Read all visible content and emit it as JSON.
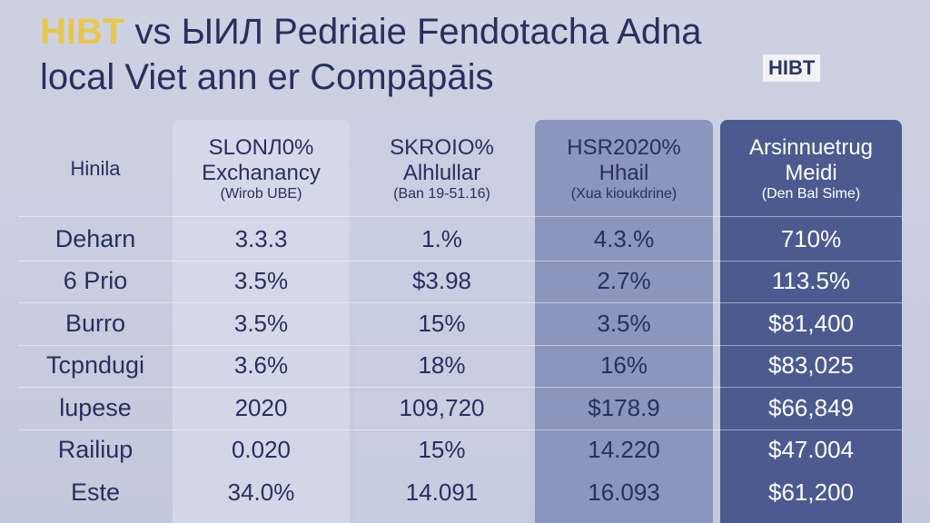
{
  "header": {
    "title_highlight": "HIBT",
    "title_rest": "vs ЫИЛ Pedriaie Fendotacha Adna",
    "subtitle": "local Viet ann er Compāpāis",
    "logo": "HIBT"
  },
  "table": {
    "corner": "Hinila",
    "columns": [
      {
        "code": "SLONЛ0%",
        "name": "Exchanancy",
        "note": "(Wirob UBE)"
      },
      {
        "code": "SKROIO%",
        "name": "Alhlullar",
        "note": "(Ban 19-51.16)"
      },
      {
        "code": "HSR2020%",
        "name": "Hhail",
        "note": "(Xua kioukdrine)"
      },
      {
        "code": "Arsinnuetrug",
        "name": "Meidi",
        "note": "(Den Bal Sime)"
      }
    ],
    "rows": [
      [
        "Deharn",
        "3.3.3",
        "1.%",
        "4.3.%",
        "710%"
      ],
      [
        "6 Prio",
        "3.5%",
        "$3.98",
        "2.7%",
        "113.5%"
      ],
      [
        "Burro",
        "3.5%",
        "15%",
        "3.5%",
        "$81,400"
      ],
      [
        "Tcpndugi",
        "3.6%",
        "18%",
        "16%",
        "$83,025"
      ],
      [
        "lupese",
        "2020",
        "109,720",
        "$178.9",
        "$66,849"
      ],
      [
        "Railiup",
        "0.020",
        "15%",
        "14.220",
        "$47.004"
      ],
      [
        "Este",
        "34.0%",
        "14.091",
        "16.093",
        "$61,200"
      ]
    ]
  }
}
